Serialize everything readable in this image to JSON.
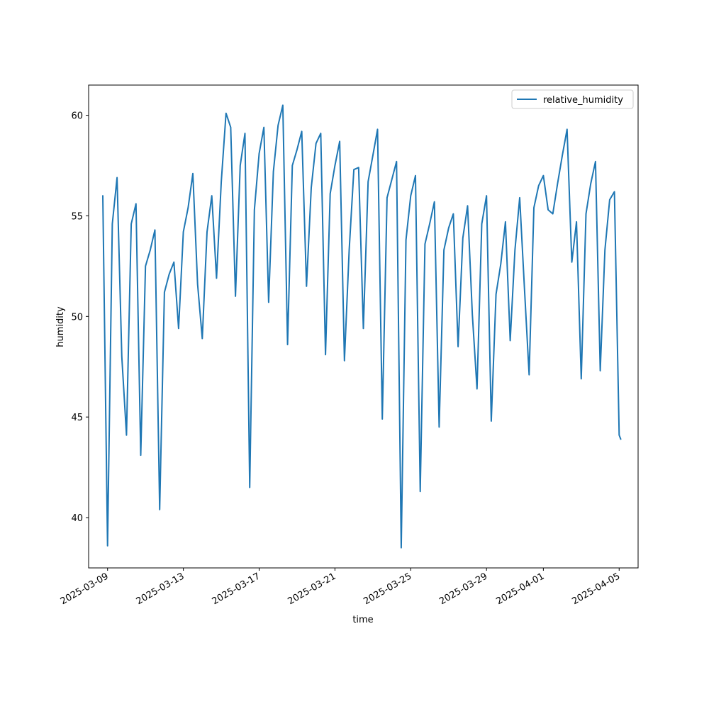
{
  "chart_data": {
    "type": "line",
    "title": "",
    "xlabel": "time",
    "ylabel": "humidity",
    "xlim": [
      "2025-03-08T00:00",
      "2025-04-06T00:00"
    ],
    "ylim": [
      37.5,
      61.5
    ],
    "yticks": [
      40,
      45,
      50,
      55,
      60
    ],
    "xticks": [
      {
        "date": "2025-03-09",
        "label": "2025-03-09"
      },
      {
        "date": "2025-03-13",
        "label": "2025-03-13"
      },
      {
        "date": "2025-03-17",
        "label": "2025-03-17"
      },
      {
        "date": "2025-03-21",
        "label": "2025-03-21"
      },
      {
        "date": "2025-03-25",
        "label": "2025-03-25"
      },
      {
        "date": "2025-03-29",
        "label": "2025-03-29"
      },
      {
        "date": "2025-04-01",
        "label": "2025-04-01"
      },
      {
        "date": "2025-04-05",
        "label": "2025-04-05"
      }
    ],
    "grid": false,
    "legend_position": "top-right",
    "series": [
      {
        "name": "relative_humidity",
        "color": "#1f77b4",
        "points": [
          [
            "2025-03-08T18:00",
            56.0
          ],
          [
            "2025-03-09T00:00",
            38.6
          ],
          [
            "2025-03-09T06:00",
            54.6
          ],
          [
            "2025-03-09T12:00",
            56.9
          ],
          [
            "2025-03-09T18:00",
            48.0
          ],
          [
            "2025-03-10T00:00",
            44.1
          ],
          [
            "2025-03-10T06:00",
            54.6
          ],
          [
            "2025-03-10T12:00",
            55.6
          ],
          [
            "2025-03-10T18:00",
            43.1
          ],
          [
            "2025-03-11T00:00",
            52.5
          ],
          [
            "2025-03-11T06:00",
            53.3
          ],
          [
            "2025-03-11T12:00",
            54.3
          ],
          [
            "2025-03-11T18:00",
            40.4
          ],
          [
            "2025-03-12T00:00",
            51.2
          ],
          [
            "2025-03-12T06:00",
            52.1
          ],
          [
            "2025-03-12T12:00",
            52.7
          ],
          [
            "2025-03-12T18:00",
            49.4
          ],
          [
            "2025-03-13T00:00",
            54.2
          ],
          [
            "2025-03-13T06:00",
            55.4
          ],
          [
            "2025-03-13T12:00",
            57.1
          ],
          [
            "2025-03-13T18:00",
            51.6
          ],
          [
            "2025-03-14T00:00",
            48.9
          ],
          [
            "2025-03-14T06:00",
            54.2
          ],
          [
            "2025-03-14T12:00",
            56.0
          ],
          [
            "2025-03-14T18:00",
            51.9
          ],
          [
            "2025-03-15T00:00",
            56.7
          ],
          [
            "2025-03-15T06:00",
            60.1
          ],
          [
            "2025-03-15T12:00",
            59.4
          ],
          [
            "2025-03-15T18:00",
            51.0
          ],
          [
            "2025-03-16T00:00",
            57.5
          ],
          [
            "2025-03-16T06:00",
            59.1
          ],
          [
            "2025-03-16T12:00",
            41.5
          ],
          [
            "2025-03-16T18:00",
            55.3
          ],
          [
            "2025-03-17T00:00",
            58.1
          ],
          [
            "2025-03-17T06:00",
            59.4
          ],
          [
            "2025-03-17T12:00",
            50.7
          ],
          [
            "2025-03-17T18:00",
            57.2
          ],
          [
            "2025-03-18T00:00",
            59.5
          ],
          [
            "2025-03-18T06:00",
            60.5
          ],
          [
            "2025-03-18T12:00",
            48.6
          ],
          [
            "2025-03-18T18:00",
            57.5
          ],
          [
            "2025-03-19T00:00",
            58.3
          ],
          [
            "2025-03-19T06:00",
            59.2
          ],
          [
            "2025-03-19T12:00",
            51.5
          ],
          [
            "2025-03-19T18:00",
            56.4
          ],
          [
            "2025-03-20T00:00",
            58.6
          ],
          [
            "2025-03-20T06:00",
            59.1
          ],
          [
            "2025-03-20T12:00",
            48.1
          ],
          [
            "2025-03-20T18:00",
            56.1
          ],
          [
            "2025-03-21T00:00",
            57.5
          ],
          [
            "2025-03-21T06:00",
            58.7
          ],
          [
            "2025-03-21T12:00",
            47.8
          ],
          [
            "2025-03-21T18:00",
            53.3
          ],
          [
            "2025-03-22T00:00",
            57.3
          ],
          [
            "2025-03-22T06:00",
            57.4
          ],
          [
            "2025-03-22T12:00",
            49.4
          ],
          [
            "2025-03-22T18:00",
            56.7
          ],
          [
            "2025-03-23T00:00",
            58.0
          ],
          [
            "2025-03-23T06:00",
            59.3
          ],
          [
            "2025-03-23T12:00",
            44.9
          ],
          [
            "2025-03-23T18:00",
            55.9
          ],
          [
            "2025-03-24T00:00",
            56.8
          ],
          [
            "2025-03-24T06:00",
            57.7
          ],
          [
            "2025-03-24T12:00",
            38.5
          ],
          [
            "2025-03-24T18:00",
            53.8
          ],
          [
            "2025-03-25T00:00",
            56.0
          ],
          [
            "2025-03-25T06:00",
            57.0
          ],
          [
            "2025-03-25T12:00",
            41.3
          ],
          [
            "2025-03-25T18:00",
            53.6
          ],
          [
            "2025-03-26T00:00",
            54.6
          ],
          [
            "2025-03-26T06:00",
            55.7
          ],
          [
            "2025-03-26T12:00",
            44.5
          ],
          [
            "2025-03-26T18:00",
            53.3
          ],
          [
            "2025-03-27T00:00",
            54.4
          ],
          [
            "2025-03-27T06:00",
            55.1
          ],
          [
            "2025-03-27T12:00",
            48.5
          ],
          [
            "2025-03-27T18:00",
            53.9
          ],
          [
            "2025-03-28T00:00",
            55.5
          ],
          [
            "2025-03-28T06:00",
            50.1
          ],
          [
            "2025-03-28T12:00",
            46.4
          ],
          [
            "2025-03-28T18:00",
            54.6
          ],
          [
            "2025-03-29T00:00",
            56.0
          ],
          [
            "2025-03-29T06:00",
            44.8
          ],
          [
            "2025-03-29T12:00",
            51.1
          ],
          [
            "2025-03-29T18:00",
            52.6
          ],
          [
            "2025-03-30T00:00",
            54.7
          ],
          [
            "2025-03-30T06:00",
            48.8
          ],
          [
            "2025-03-30T12:00",
            53.3
          ],
          [
            "2025-03-30T18:00",
            55.9
          ],
          [
            "2025-03-31T00:00",
            51.4
          ],
          [
            "2025-03-31T06:00",
            47.1
          ],
          [
            "2025-03-31T12:00",
            55.4
          ],
          [
            "2025-03-31T18:00",
            56.5
          ],
          [
            "2025-04-01T00:00",
            57.0
          ],
          [
            "2025-04-01T06:00",
            55.3
          ],
          [
            "2025-04-01T12:00",
            55.1
          ],
          [
            "2025-04-01T18:00",
            56.6
          ],
          [
            "2025-04-02T00:00",
            58.0
          ],
          [
            "2025-04-02T06:00",
            59.3
          ],
          [
            "2025-04-02T12:00",
            52.7
          ],
          [
            "2025-04-02T18:00",
            54.7
          ],
          [
            "2025-04-03T00:00",
            46.9
          ],
          [
            "2025-04-03T06:00",
            55.1
          ],
          [
            "2025-04-03T12:00",
            56.6
          ],
          [
            "2025-04-03T18:00",
            57.7
          ],
          [
            "2025-04-04T00:00",
            47.3
          ],
          [
            "2025-04-04T06:00",
            53.3
          ],
          [
            "2025-04-04T12:00",
            55.8
          ],
          [
            "2025-04-04T18:00",
            56.2
          ],
          [
            "2025-04-05T00:00",
            44.1
          ],
          [
            "2025-04-05T02:00",
            43.9
          ]
        ]
      }
    ]
  }
}
